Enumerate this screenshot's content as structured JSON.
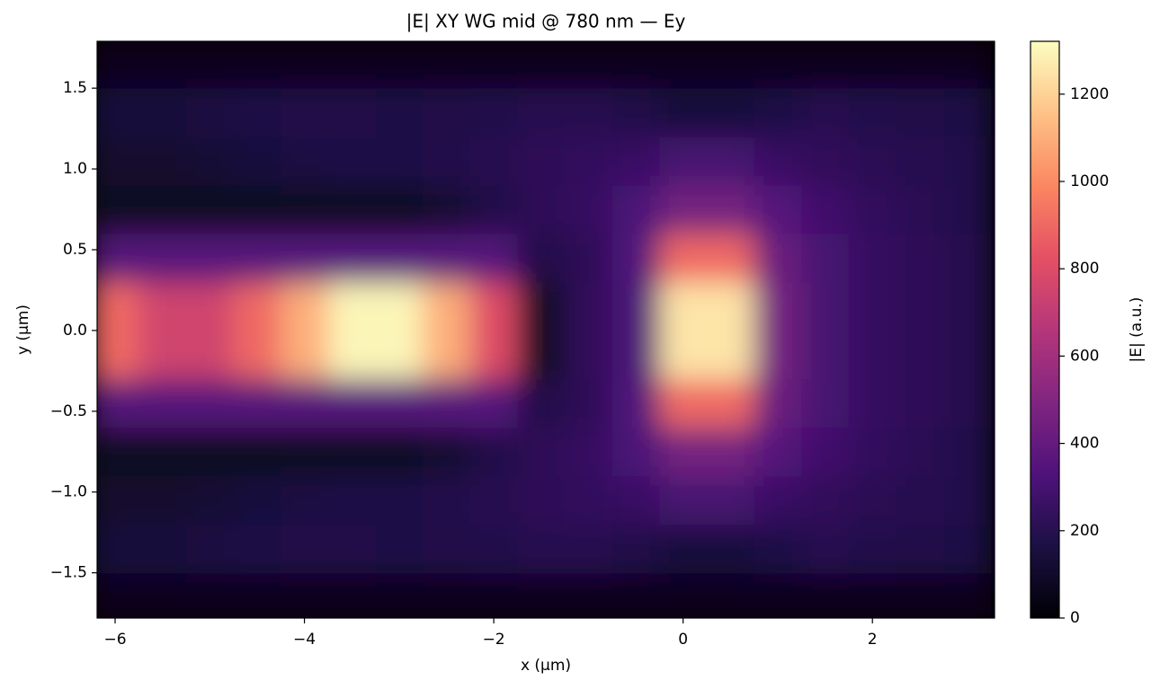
{
  "chart_data": {
    "type": "heatmap",
    "title": "|E| XY WG mid @ 780 nm — Ey",
    "x_label": "x (µm)",
    "y_label": "y (µm)",
    "colorbar_label": "|E| (a.u.)",
    "colormap": "magma",
    "x": [
      -6,
      -5.5,
      -5,
      -4.5,
      -4,
      -3.5,
      -3,
      -2.5,
      -2,
      -1.5,
      -1,
      -0.5,
      0,
      0.5,
      1,
      1.5,
      2,
      2.5,
      3
    ],
    "y": [
      -1.65,
      -1.35,
      -1.05,
      -0.75,
      -0.45,
      -0.15,
      0.15,
      0.45,
      0.75,
      1.05,
      1.35,
      1.65
    ],
    "z": [
      [
        60,
        60,
        60,
        60,
        60,
        60,
        60,
        60,
        60,
        60,
        60,
        60,
        60,
        60,
        60,
        60,
        60,
        60,
        60
      ],
      [
        150,
        150,
        160,
        170,
        180,
        180,
        170,
        180,
        190,
        200,
        200,
        180,
        150,
        150,
        170,
        200,
        190,
        180,
        170
      ],
      [
        110,
        110,
        130,
        150,
        160,
        170,
        170,
        190,
        200,
        220,
        240,
        260,
        300,
        300,
        260,
        230,
        210,
        200,
        190
      ],
      [
        80,
        80,
        80,
        80,
        80,
        80,
        80,
        120,
        180,
        220,
        250,
        320,
        450,
        450,
        350,
        280,
        240,
        210,
        190
      ],
      [
        350,
        350,
        350,
        350,
        350,
        350,
        350,
        350,
        350,
        180,
        220,
        330,
        900,
        900,
        420,
        300,
        250,
        220,
        200
      ],
      [
        900,
        750,
        750,
        900,
        1100,
        1300,
        1300,
        1100,
        800,
        80,
        230,
        320,
        1250,
        1250,
        450,
        300,
        250,
        220,
        200
      ],
      [
        900,
        750,
        750,
        900,
        1100,
        1300,
        1300,
        1100,
        800,
        80,
        230,
        320,
        1250,
        1250,
        450,
        300,
        250,
        220,
        200
      ],
      [
        350,
        350,
        350,
        350,
        350,
        350,
        350,
        350,
        350,
        180,
        220,
        330,
        900,
        900,
        420,
        300,
        250,
        220,
        200
      ],
      [
        80,
        80,
        80,
        80,
        80,
        80,
        80,
        120,
        180,
        220,
        250,
        320,
        450,
        450,
        350,
        280,
        240,
        210,
        190
      ],
      [
        110,
        110,
        130,
        150,
        160,
        170,
        170,
        190,
        200,
        220,
        240,
        260,
        300,
        300,
        260,
        230,
        210,
        200,
        190
      ],
      [
        150,
        150,
        160,
        170,
        180,
        180,
        170,
        180,
        190,
        200,
        200,
        180,
        150,
        150,
        170,
        200,
        190,
        180,
        170
      ],
      [
        60,
        60,
        60,
        60,
        60,
        60,
        60,
        60,
        60,
        60,
        60,
        60,
        60,
        60,
        60,
        60,
        60,
        60,
        60
      ]
    ],
    "xlim": [
      -6.19,
      3.29
    ],
    "ylim": [
      -1.78,
      1.79
    ],
    "clim": [
      0,
      1321
    ],
    "xticks": [
      {
        "value": -6,
        "label": "−6"
      },
      {
        "value": -4,
        "label": "−4"
      },
      {
        "value": -2,
        "label": "−2"
      },
      0,
      2
    ],
    "yticks": [
      {
        "value": -1.5,
        "label": "−1.5"
      },
      {
        "value": -1,
        "label": "−1.0"
      },
      {
        "value": -0.5,
        "label": "−0.5"
      },
      {
        "value": 0,
        "label": "0.0"
      },
      0.5,
      {
        "value": 1,
        "label": "1.0"
      },
      1.5
    ],
    "cticks": [
      0,
      200,
      400,
      600,
      800,
      1000,
      1200
    ]
  }
}
